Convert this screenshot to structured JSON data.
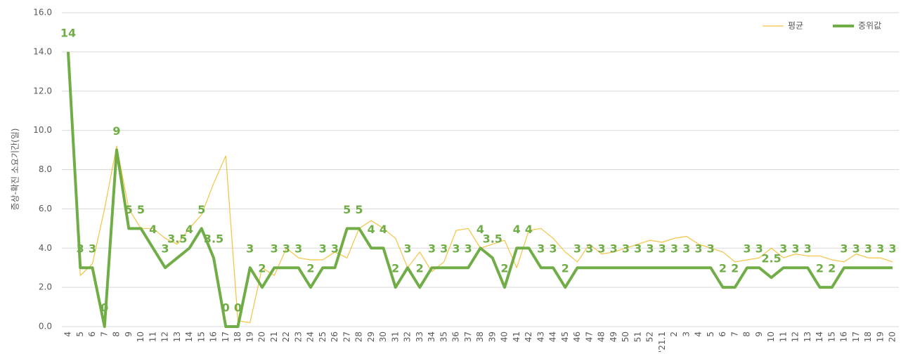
{
  "chart_data": {
    "type": "line",
    "y_label": "증상-확진 소요기간(일)",
    "categories": [
      "4",
      "5",
      "6",
      "7",
      "8",
      "9",
      "10",
      "11",
      "12",
      "13",
      "14",
      "15",
      "16",
      "17",
      "18",
      "19",
      "20",
      "21",
      "22",
      "23",
      "24",
      "25",
      "26",
      "27",
      "28",
      "29",
      "30",
      "31",
      "32",
      "33",
      "34",
      "35",
      "36",
      "37",
      "38",
      "39",
      "40",
      "41",
      "42",
      "43",
      "44",
      "45",
      "46",
      "47",
      "48",
      "49",
      "50",
      "51",
      "52",
      "'21.1",
      "2",
      "3",
      "4",
      "5",
      "6",
      "7",
      "8",
      "9",
      "10",
      "11",
      "12",
      "13",
      "14",
      "15",
      "16",
      "17",
      "18",
      "19",
      "20"
    ],
    "series": [
      {
        "name": "평균",
        "color": "#f5c242",
        "values": [
          14,
          2.6,
          3.2,
          6,
          9.2,
          6,
          5,
          5,
          4.5,
          4.2,
          5,
          5.7,
          7.3,
          8.7,
          0.3,
          0.2,
          3,
          2.6,
          4,
          3.5,
          3.4,
          3.4,
          3.8,
          3.5,
          5,
          5.4,
          5,
          4.5,
          3,
          3.8,
          2.8,
          3.3,
          4.9,
          5,
          4,
          4.2,
          4.4,
          3,
          4.9,
          5,
          4.5,
          3.8,
          3.3,
          4.2,
          3.7,
          3.8,
          4,
          4.2,
          4.4,
          4.3,
          4.5,
          4.6,
          4.2,
          4,
          3.8,
          3.3,
          3.4,
          3.5,
          4,
          3.5,
          3.7,
          3.6,
          3.6,
          3.4,
          3.3,
          3.7,
          3.5,
          3.5,
          3.3
        ]
      },
      {
        "name": "중위값",
        "color": "#70ad47",
        "data_labels": true,
        "values": [
          14,
          3,
          3,
          0,
          9,
          5,
          5,
          4,
          3,
          3.5,
          4,
          5,
          3.5,
          0,
          0,
          3,
          2,
          3,
          3,
          3,
          2,
          3,
          3,
          5,
          5,
          4,
          4,
          2,
          3,
          2,
          3,
          3,
          3,
          3,
          4,
          3.5,
          2,
          4,
          4,
          3,
          3,
          2,
          3,
          3,
          3,
          3,
          3,
          3,
          3,
          3,
          3,
          3,
          3,
          3,
          2,
          2,
          3,
          3,
          2.5,
          3,
          3,
          3,
          2,
          2,
          3,
          3,
          3,
          3,
          3
        ]
      }
    ],
    "ylim": [
      0,
      16
    ],
    "yticks": [
      {
        "value": 0,
        "label": "0.0"
      },
      {
        "value": 2,
        "label": "2.0"
      },
      {
        "value": 4,
        "label": "4.0"
      },
      {
        "value": 6,
        "label": "6.0"
      },
      {
        "value": 8,
        "label": "8.0"
      },
      {
        "value": 10,
        "label": "10.0"
      },
      {
        "value": 12,
        "label": "12.0"
      },
      {
        "value": 14,
        "label": "14.0"
      },
      {
        "value": 16,
        "label": "16.0"
      }
    ],
    "grid": true,
    "legend": "top-right"
  }
}
